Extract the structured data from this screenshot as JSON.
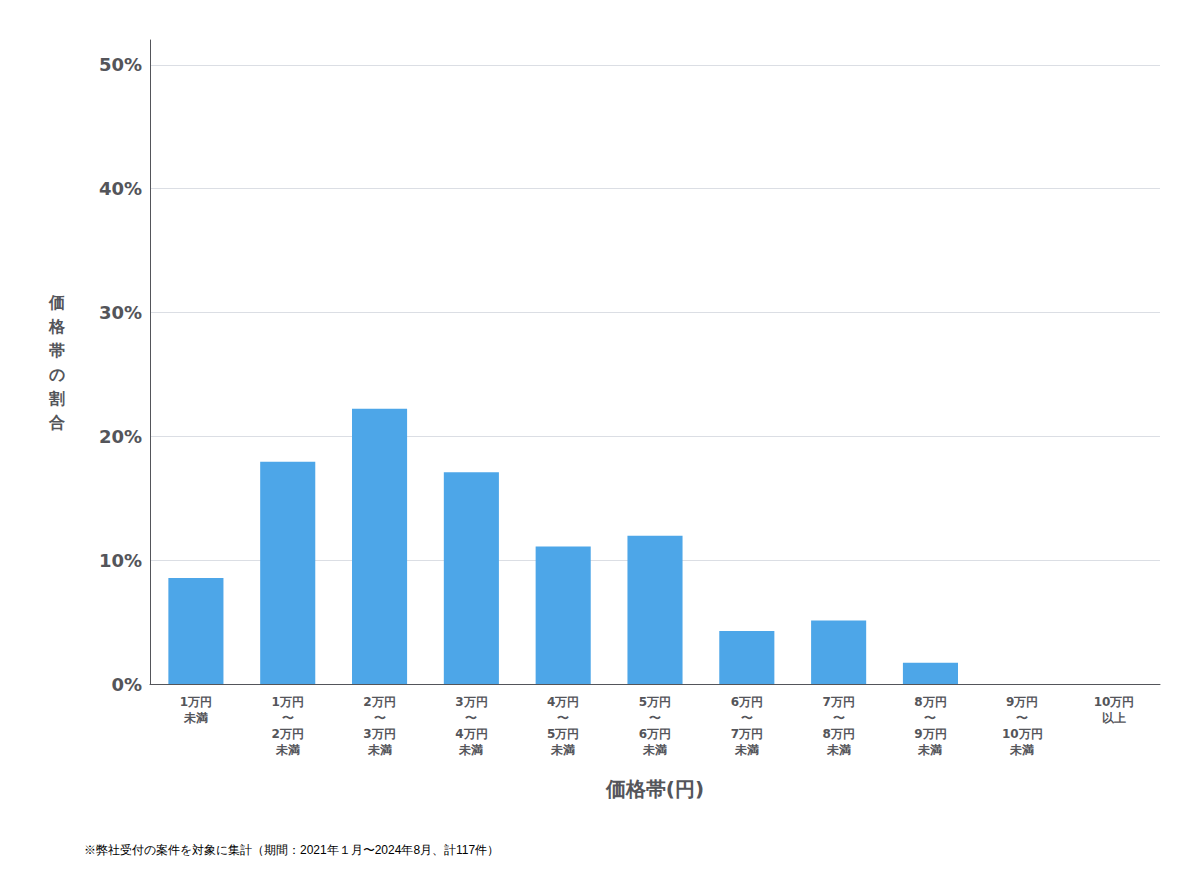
{
  "chart_data": {
    "type": "bar",
    "xlabel": "価格帯(円)",
    "ylabel": "価\n格\n帯\nの\n割\n合",
    "footnote": "※弊社受付の案件を対象に集計（期間：2021年１月〜2024年8月、計117件）",
    "categories": [
      "1万円\n未満",
      "1万円\n〜\n2万円\n未満",
      "2万円\n〜\n3万円\n未満",
      "3万円\n〜\n4万円\n未満",
      "4万円\n〜\n5万円\n未満",
      "5万円\n〜\n6万円\n未満",
      "6万円\n〜\n7万円\n未満",
      "7万円\n〜\n8万円\n未満",
      "8万円\n〜\n9万円\n未満",
      "9万円\n〜\n10万円\n未満",
      "10万円\n以上"
    ],
    "values": [
      0.0855,
      0.1795,
      0.2222,
      0.1709,
      0.1111,
      0.1197,
      0.0427,
      0.0513,
      0.0171,
      0.0,
      0.0
    ],
    "color": "#4da6e8",
    "ylim": [
      0,
      0.52
    ],
    "yticks": [
      {
        "value": 0.0,
        "label": "0%"
      },
      {
        "value": 0.1,
        "label": "10%"
      },
      {
        "value": 0.2,
        "label": "20%"
      },
      {
        "value": 0.3,
        "label": "30%"
      },
      {
        "value": 0.4,
        "label": "40%"
      },
      {
        "value": 0.5,
        "label": "50%"
      }
    ],
    "grid": true
  }
}
